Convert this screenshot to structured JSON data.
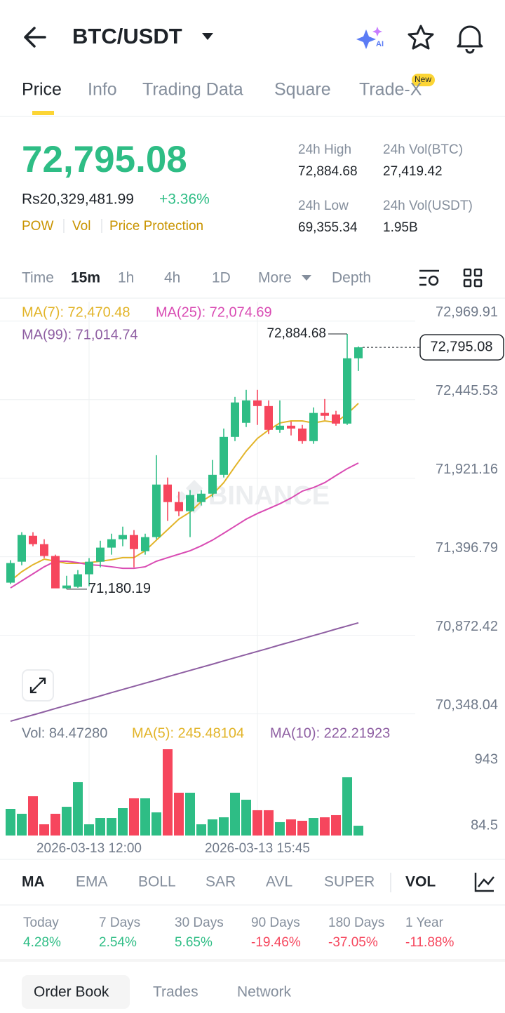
{
  "header": {
    "title": "BTC/USDT",
    "tabs": [
      "Price",
      "Info",
      "Trading Data",
      "Square",
      "Trade-X"
    ],
    "badge": "New"
  },
  "ticker": {
    "price": "72,795.08",
    "local_price": "Rs20,329,481.99",
    "change": "+3.36%",
    "tags": [
      "POW",
      "Vol",
      "Price Protection"
    ],
    "stats": [
      {
        "label": "24h High",
        "value": "72,884.68"
      },
      {
        "label": "24h Vol(BTC)",
        "value": "27,419.42"
      },
      {
        "label": "24h Low",
        "value": "69,355.34"
      },
      {
        "label": "24h Vol(USDT)",
        "value": "1.95B"
      }
    ]
  },
  "timeframes": [
    "Time",
    "15m",
    "1h",
    "4h",
    "1D",
    "More",
    "Depth"
  ],
  "chart_data": {
    "type": "candlestick",
    "watermark": "BINANCE",
    "up_color": "#2ebd85",
    "down_color": "#f6465d",
    "grid": true,
    "categories": [
      null,
      null,
      null,
      null,
      null,
      null,
      null,
      "2026-03-13 12:00",
      null,
      null,
      null,
      null,
      null,
      null,
      null,
      null,
      null,
      null,
      null,
      null,
      null,
      null,
      "2026-03-13 15:45",
      null,
      null,
      null,
      null,
      null,
      null,
      null,
      null,
      null
    ],
    "open": [
      71224,
      71364,
      71537,
      71481,
      71402,
      71186,
      71196,
      71280,
      71364,
      71458,
      71514,
      71542,
      71434,
      71528,
      71879,
      71762,
      71701,
      71762,
      71818,
      71944,
      72197,
      72291,
      72441,
      72403,
      72244,
      72272,
      72253,
      72169,
      72357,
      72347,
      72286,
      72722
    ],
    "close": [
      71355,
      71542,
      71481,
      71402,
      71186,
      71205,
      71280,
      71364,
      71458,
      71514,
      71542,
      71448,
      71528,
      71879,
      71762,
      71701,
      71809,
      71818,
      71944,
      72197,
      72427,
      72441,
      72403,
      72244,
      72272,
      72253,
      72169,
      72357,
      72338,
      72286,
      72722,
      72795.08
    ],
    "high": [
      71374,
      71561,
      71561,
      71514,
      71411,
      71270,
      71308,
      71388,
      71504,
      71551,
      71598,
      71575,
      71551,
      72075,
      71926,
      71832,
      71842,
      71842,
      72043,
      72253,
      72464,
      72511,
      72511,
      72441,
      72441,
      72300,
      72277,
      72394,
      72450,
      72371,
      72884.68,
      72801
    ],
    "low": [
      71215,
      71340,
      71467,
      71388,
      71195,
      71180.19,
      71190,
      71200,
      71326,
      71411,
      71467,
      71326,
      71411,
      71514,
      71636,
      71668,
      71528,
      71739,
      71795,
      71926,
      72169,
      72263,
      72277,
      72216,
      72225,
      72207,
      72151,
      72151,
      72310,
      72272,
      72277,
      72637
    ],
    "high_label": "72,884.68",
    "low_label": "71,180.19",
    "last_price_label": "72,795.08",
    "ylim": [
      70290,
      73100
    ],
    "yticks": [
      {
        "value": 72969.91,
        "label": "72,969.91"
      },
      {
        "value": 72445.53,
        "label": "72,445.53"
      },
      {
        "value": 71921.16,
        "label": "71,921.16"
      },
      {
        "value": 71396.79,
        "label": "71,396.79"
      },
      {
        "value": 70872.42,
        "label": "70,872.42"
      },
      {
        "value": 70348.04,
        "label": "70,348.04"
      }
    ],
    "series": [
      {
        "name": "MA(7): 72,470.48",
        "color": "#e2b428",
        "values": [
          71236,
          71297,
          71344,
          71381,
          71367,
          71353,
          71353,
          71358,
          71367,
          71377,
          71391,
          71391,
          71437,
          71508,
          71578,
          71648,
          71695,
          71765,
          71812,
          71892,
          71999,
          72102,
          72187,
          72243,
          72290,
          72304,
          72304,
          72290,
          72304,
          72294,
          72351,
          72421
        ]
      },
      {
        "name": "MA(25): 72,074.69",
        "color": "#d94bb3",
        "values": [
          71189,
          71236,
          71283,
          71330,
          71367,
          71367,
          71358,
          71344,
          71339,
          71330,
          71320,
          71320,
          71330,
          71367,
          71391,
          71414,
          71437,
          71470,
          71508,
          71554,
          71601,
          71648,
          71686,
          71718,
          71751,
          71789,
          71835,
          71859,
          71892,
          71939,
          71985,
          72023
        ]
      },
      {
        "name": "MA(99): 71,014.74",
        "color": "#8e5ea2",
        "values": [
          70299,
          70320,
          70341,
          70362,
          70384,
          70405,
          70426,
          70447,
          70468,
          70490,
          70511,
          70532,
          70553,
          70574,
          70596,
          70617,
          70638,
          70659,
          70680,
          70702,
          70723,
          70744,
          70765,
          70786,
          70808,
          70829,
          70850,
          70871,
          70892,
          70914,
          70935,
          70956
        ]
      }
    ],
    "volume": [
      304,
      240,
      468,
      103,
      240,
      331,
      651,
      103,
      185,
      185,
      313,
      441,
      441,
      258,
      1080,
      514,
      514,
      103,
      167,
      194,
      514,
      423,
      286,
      286,
      131,
      167,
      149,
      185,
      194,
      222,
      715,
      84.4728
    ],
    "volume_ylim": [
      -43,
      1080
    ],
    "volume_yticks": [
      943,
      84.5
    ],
    "volume_legend": [
      {
        "text": "Vol: 84.47280",
        "color": "#707a8a"
      },
      {
        "text": "MA(5): 245.48104",
        "color": "#e2b428"
      },
      {
        "text": "MA(10): 222.21923",
        "color": "#8e5ea2"
      }
    ]
  },
  "indicators": [
    "MA",
    "EMA",
    "BOLL",
    "SAR",
    "AVL",
    "SUPER",
    "VOL"
  ],
  "performance": [
    {
      "label": "Today",
      "value": "4.28%"
    },
    {
      "label": "7 Days",
      "value": "2.54%"
    },
    {
      "label": "30 Days",
      "value": "5.65%"
    },
    {
      "label": "90 Days",
      "value": "-19.46%"
    },
    {
      "label": "180 Days",
      "value": "-37.05%"
    },
    {
      "label": "1 Year",
      "value": "-11.88%"
    }
  ],
  "bottom_tabs": [
    "Order Book",
    "Trades",
    "Network"
  ]
}
